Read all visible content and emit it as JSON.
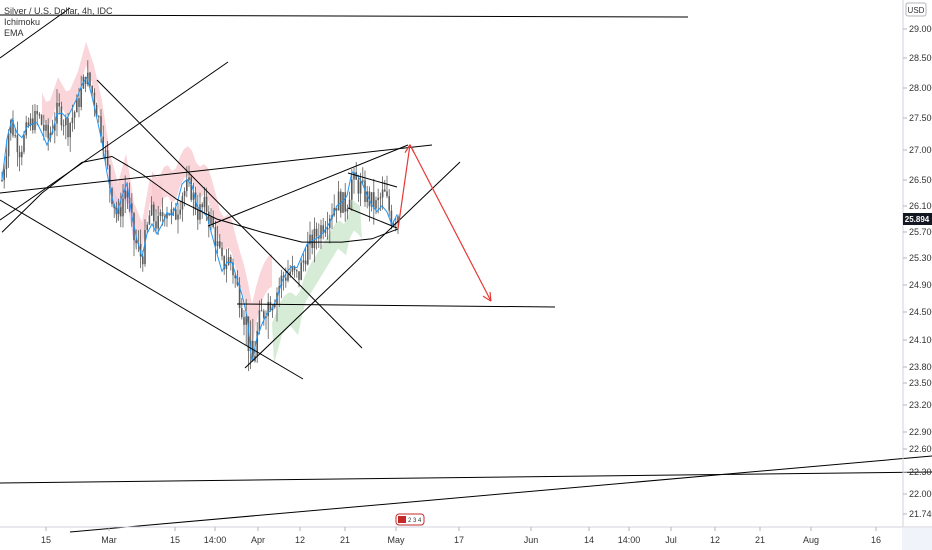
{
  "legend": {
    "symbol_line": "Silver / U.S. Dollar, 4h, IDC",
    "indicator_1": "Ichimoku",
    "indicator_2": "EMA"
  },
  "currency": "USD",
  "current_price": "25.894",
  "colors": {
    "candle_body": "#5b5b5b",
    "ichimoku_conversion": "#2196f3",
    "ichimoku_cloud_bull": "#c8e6c9",
    "ichimoku_cloud_bear": "#f8c8cf",
    "ema": "#000000",
    "trendline": "#000000",
    "projection_arrow": "#e53935",
    "price_tag": "#131722",
    "grid": "#f0f3fa"
  },
  "chart_data": {
    "type": "candlestick",
    "title": "Silver / U.S. Dollar, 4h, IDC",
    "y_ticks": [
      "29.000",
      "28.500",
      "28.000",
      "27.500",
      "27.000",
      "26.500",
      "26.100",
      "25.700",
      "25.300",
      "24.900",
      "24.500",
      "24.100",
      "23.800",
      "23.500",
      "23.200",
      "22.900",
      "22.600",
      "22.300",
      "22.000",
      "21.740"
    ],
    "x_ticks": [
      "15",
      "Mar",
      "15",
      "14:00",
      "Apr",
      "12",
      "21",
      "May",
      "17",
      "Jun",
      "14",
      "14:00",
      "Jul",
      "12",
      "21",
      "Aug",
      "16"
    ],
    "ylim": [
      21.5,
      29.3
    ],
    "close_series": [
      {
        "t": 0,
        "c": 26.5
      },
      {
        "t": 8,
        "c": 27.5
      },
      {
        "t": 18,
        "c": 27.0
      },
      {
        "t": 26,
        "c": 27.4
      },
      {
        "t": 36,
        "c": 27.6
      },
      {
        "t": 46,
        "c": 27.2
      },
      {
        "t": 56,
        "c": 27.7
      },
      {
        "t": 66,
        "c": 27.4
      },
      {
        "t": 76,
        "c": 27.8
      },
      {
        "t": 84,
        "c": 28.3
      },
      {
        "t": 92,
        "c": 27.9
      },
      {
        "t": 100,
        "c": 27.3
      },
      {
        "t": 108,
        "c": 26.4
      },
      {
        "t": 116,
        "c": 25.9
      },
      {
        "t": 124,
        "c": 26.4
      },
      {
        "t": 132,
        "c": 25.6
      },
      {
        "t": 140,
        "c": 25.3
      },
      {
        "t": 148,
        "c": 26.0
      },
      {
        "t": 156,
        "c": 25.8
      },
      {
        "t": 164,
        "c": 26.1
      },
      {
        "t": 172,
        "c": 25.9
      },
      {
        "t": 180,
        "c": 26.3
      },
      {
        "t": 188,
        "c": 26.4
      },
      {
        "t": 196,
        "c": 26.0
      },
      {
        "t": 204,
        "c": 26.1
      },
      {
        "t": 212,
        "c": 25.7
      },
      {
        "t": 220,
        "c": 25.2
      },
      {
        "t": 228,
        "c": 25.3
      },
      {
        "t": 236,
        "c": 24.8
      },
      {
        "t": 244,
        "c": 24.4
      },
      {
        "t": 250,
        "c": 23.9
      },
      {
        "t": 256,
        "c": 24.3
      },
      {
        "t": 264,
        "c": 24.6
      },
      {
        "t": 272,
        "c": 24.7
      },
      {
        "t": 280,
        "c": 25.0
      },
      {
        "t": 288,
        "c": 25.1
      },
      {
        "t": 296,
        "c": 25.0
      },
      {
        "t": 304,
        "c": 25.4
      },
      {
        "t": 312,
        "c": 25.6
      },
      {
        "t": 320,
        "c": 25.8
      },
      {
        "t": 328,
        "c": 26.0
      },
      {
        "t": 336,
        "c": 26.2
      },
      {
        "t": 344,
        "c": 26.1
      },
      {
        "t": 350,
        "c": 26.5
      },
      {
        "t": 358,
        "c": 26.4
      },
      {
        "t": 366,
        "c": 26.2
      },
      {
        "t": 374,
        "c": 26.1
      },
      {
        "t": 382,
        "c": 26.3
      },
      {
        "t": 390,
        "c": 25.9
      },
      {
        "t": 396,
        "c": 26.0
      }
    ],
    "projection": [
      {
        "label": "rise",
        "from": 25.75,
        "to": 27.1
      },
      {
        "label": "drop",
        "from": 27.1,
        "to": 24.65
      }
    ],
    "horizontal_levels": [
      24.62,
      22.3
    ],
    "grid": false,
    "legend_position": "top-left"
  }
}
